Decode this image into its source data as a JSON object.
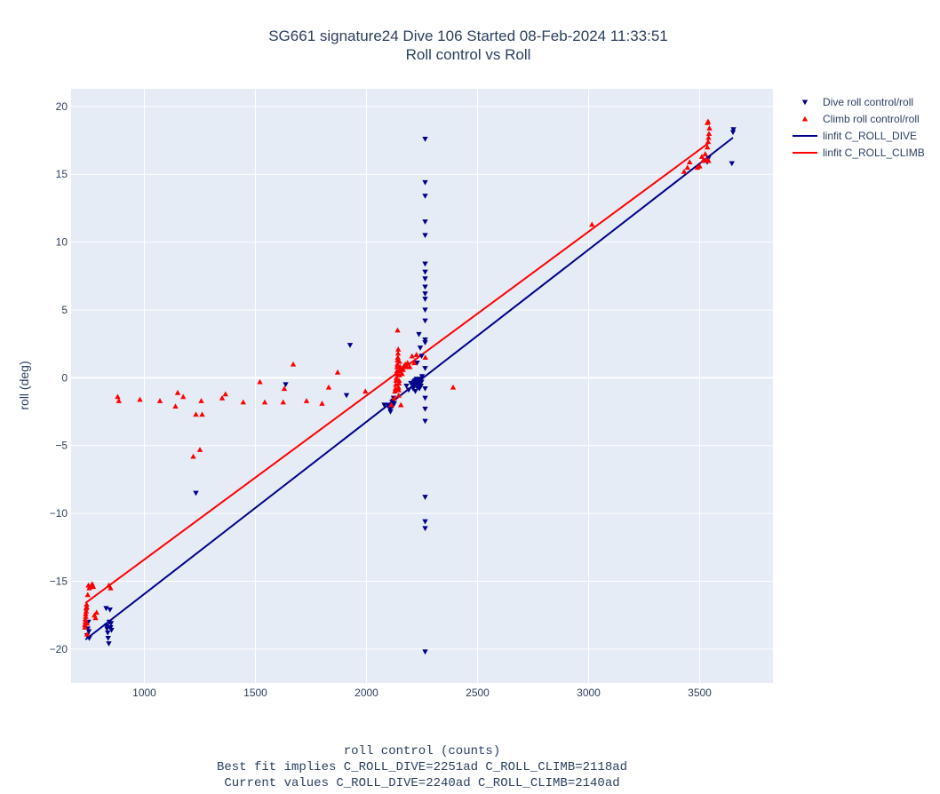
{
  "chart_data": {
    "type": "scatter",
    "title": [
      "SG661 signature24 Dive 106 Started 08-Feb-2024 11:33:51",
      "Roll control vs Roll"
    ],
    "xlabel": [
      "roll control (counts)",
      "Best fit implies C_ROLL_DIVE=2251ad C_ROLL_CLIMB=2118ad",
      "Current values C_ROLL_DIVE=2240ad C_ROLL_CLIMB=2140ad"
    ],
    "ylabel": "roll (deg)",
    "xlim": [
      670,
      3830
    ],
    "ylim": [
      -22.5,
      21.3
    ],
    "xticks": [
      1000,
      1500,
      2000,
      2500,
      3000,
      3500
    ],
    "yticks": [
      -20,
      -15,
      -10,
      -5,
      0,
      5,
      10,
      15,
      20
    ],
    "grid": true,
    "legend_position": "top-right, outside plot",
    "colors": {
      "dive": "#00008b",
      "climb": "#ff0000",
      "plot_bg": "#e5ecf6",
      "grid": "#ffffff"
    },
    "series": [
      {
        "name": "Dive roll control/roll",
        "kind": "markers",
        "marker": "triangle-down",
        "color": "#00008b",
        "x": [
          742,
          745,
          748,
          750,
          752,
          828,
          830,
          832,
          835,
          837,
          840,
          842,
          845,
          848,
          850,
          852,
          1232,
          1636,
          1910,
          1926,
          2080,
          2095,
          2105,
          2108,
          2110,
          2112,
          2115,
          2118,
          2120,
          2122,
          2125,
          2180,
          2190,
          2200,
          2205,
          2210,
          2213,
          2215,
          2218,
          2220,
          2222,
          2225,
          2228,
          2230,
          2232,
          2235,
          2238,
          2240,
          2242,
          2245,
          2248,
          2250,
          2236,
          2242,
          2248,
          2228,
          2264,
          2264,
          2264,
          2264,
          2264,
          2264,
          2264,
          2264,
          2264,
          2264,
          2264,
          2264,
          2264,
          2264,
          2264,
          2264,
          2264,
          2264,
          2264,
          2264,
          2264,
          2264,
          2264,
          2264,
          3534,
          3540,
          3645,
          3650,
          3652
        ],
        "y": [
          -19.0,
          -18.5,
          -18.0,
          -18.7,
          -19.2,
          -17.0,
          -18.3,
          -18.5,
          -18.8,
          -19.2,
          -19.6,
          -18.0,
          -17.1,
          -18.4,
          -18.1,
          -18.6,
          -8.5,
          -0.5,
          -1.3,
          2.4,
          -2.0,
          -2.0,
          -2.3,
          -2.5,
          -2.2,
          -2.0,
          -1.8,
          -2.1,
          -1.7,
          -1.5,
          -1.9,
          -0.6,
          -0.9,
          -0.4,
          -0.5,
          -0.8,
          -0.3,
          -0.6,
          -0.2,
          -1.0,
          -0.5,
          -0.1,
          -0.7,
          -0.3,
          -0.5,
          -0.2,
          -0.8,
          -0.4,
          -0.1,
          -0.6,
          -0.3,
          0.1,
          3.2,
          2.2,
          1.6,
          1.1,
          -20.2,
          -11.1,
          -10.6,
          -8.8,
          -3.2,
          -2.3,
          0.7,
          2.6,
          2.8,
          4.2,
          5.0,
          5.8,
          6.2,
          6.7,
          7.3,
          7.8,
          8.4,
          10.5,
          11.5,
          13.4,
          14.4,
          17.6,
          -1.5,
          -0.8,
          15.9,
          16.2,
          15.8,
          18.1,
          18.3
        ],
        "note": ""
      },
      {
        "name": "Climb roll control/roll",
        "kind": "markers",
        "marker": "triangle-up",
        "color": "#ff0000",
        "x": [
          732,
          734,
          736,
          738,
          740,
          742,
          732,
          734,
          736,
          738,
          740,
          742,
          745,
          748,
          752,
          760,
          765,
          770,
          775,
          780,
          785,
          840,
          848,
          880,
          885,
          980,
          1070,
          1140,
          1150,
          1175,
          1220,
          1232,
          1250,
          1256,
          1260,
          1350,
          1365,
          1445,
          1520,
          1542,
          1625,
          1630,
          1670,
          1730,
          1800,
          1830,
          1870,
          1995,
          2112,
          2125,
          2128,
          2130,
          2132,
          2133,
          2135,
          2136,
          2137,
          2138,
          2139,
          2140,
          2141,
          2142,
          2143,
          2144,
          2145,
          2146,
          2147,
          2148,
          2150,
          2152,
          2155,
          2140,
          2145,
          2148,
          2150,
          2160,
          2165,
          2170,
          2175,
          2180,
          2185,
          2195,
          2205,
          2215,
          2225,
          2265,
          2390,
          3015,
          3430,
          3445,
          3455,
          3490,
          3500,
          3510,
          3515,
          3525,
          3530,
          3535,
          3538,
          3540,
          3542,
          3544,
          3535,
          3538,
          3540
        ],
        "y": [
          -18.2,
          -17.8,
          -17.4,
          -17.0,
          -16.7,
          -18.1,
          -18.4,
          -18.0,
          -17.6,
          -17.2,
          -16.9,
          -18.9,
          -16.0,
          -15.3,
          -15.5,
          -15.4,
          -15.2,
          -15.4,
          -17.5,
          -17.7,
          -17.3,
          -15.3,
          -15.5,
          -1.4,
          -1.7,
          -1.6,
          -1.7,
          -2.1,
          -1.1,
          -1.4,
          -5.8,
          -2.7,
          -5.3,
          -1.7,
          -2.7,
          -1.5,
          -1.2,
          -1.8,
          -0.3,
          -1.8,
          -1.8,
          -0.8,
          1.0,
          -1.7,
          -1.9,
          -0.7,
          0.4,
          -1.0,
          -2.0,
          -1.5,
          -1.0,
          -0.8,
          -0.5,
          -0.2,
          0.0,
          0.3,
          0.5,
          0.8,
          1.0,
          1.3,
          1.5,
          1.8,
          2.1,
          -0.7,
          -0.9,
          -0.4,
          -0.2,
          0.2,
          0.6,
          0.8,
          -2.0,
          3.5,
          -1.3,
          1.2,
          0.5,
          0.3,
          0.6,
          0.9,
          1.0,
          0.8,
          1.1,
          0.8,
          1.6,
          1.1,
          1.7,
          1.5,
          -0.7,
          11.3,
          15.2,
          15.5,
          15.9,
          15.5,
          15.6,
          16.3,
          16.0,
          16.5,
          16.1,
          17.0,
          17.4,
          17.7,
          18.0,
          18.4,
          18.8,
          18.9,
          16.0
        ],
        "note": ""
      },
      {
        "name": "linfit C_ROLL_DIVE",
        "kind": "line",
        "color": "#00008b",
        "x": [
          735,
          3650
        ],
        "y": [
          -19.3,
          17.7
        ]
      },
      {
        "name": "linfit C_ROLL_CLIMB",
        "kind": "line",
        "color": "#ff0000",
        "x": [
          735,
          3540
        ],
        "y": [
          -16.6,
          17.3
        ]
      }
    ]
  }
}
